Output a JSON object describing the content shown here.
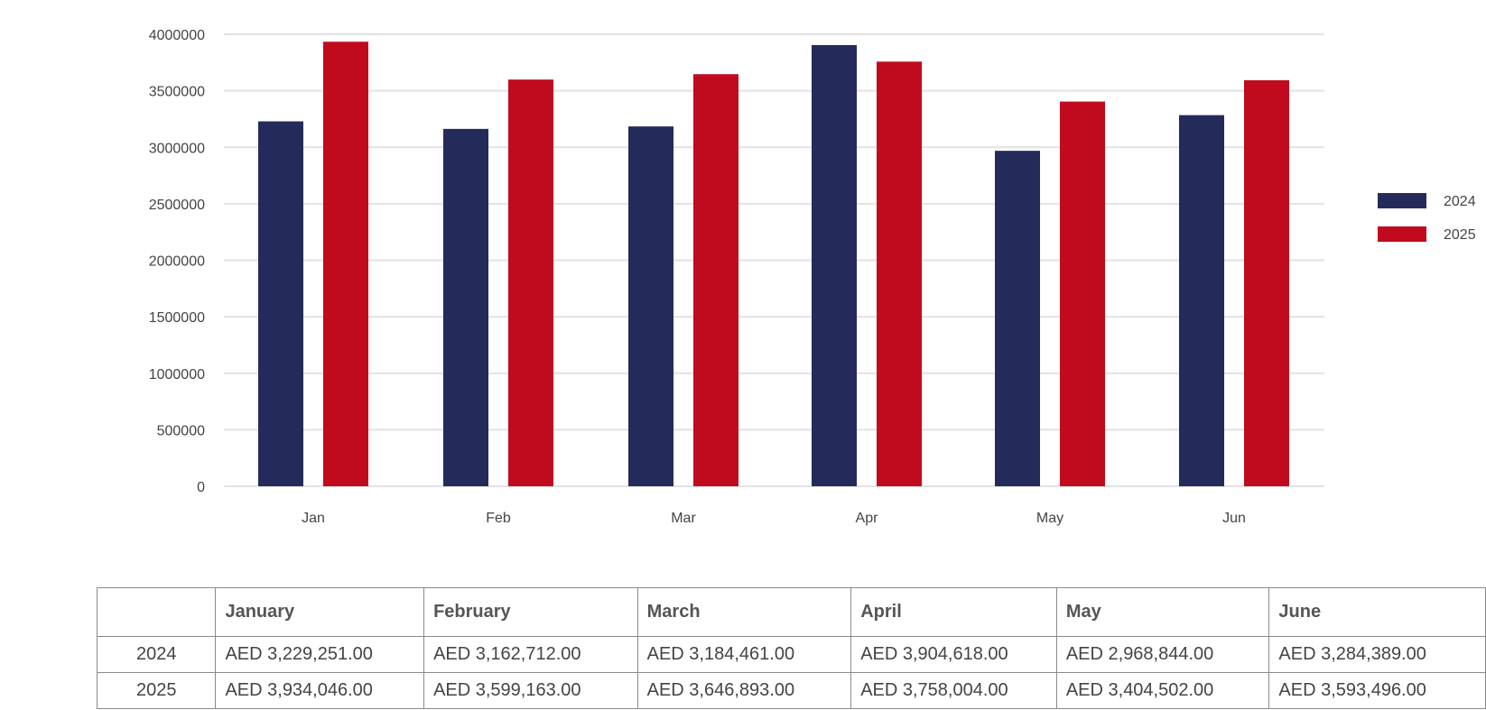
{
  "chart_data": {
    "type": "bar",
    "categories": [
      "Jan",
      "Feb",
      "Mar",
      "Apr",
      "May",
      "Jun"
    ],
    "series": [
      {
        "name": "2024",
        "color": "#242B5A",
        "values": [
          3229251,
          3162712,
          3184461,
          3904618,
          2968844,
          3284389
        ]
      },
      {
        "name": "2025",
        "color": "#C10A1E",
        "values": [
          3934046,
          3599163,
          3646893,
          3758004,
          3404502,
          3593496
        ]
      }
    ],
    "yticks": [
      0,
      500000,
      1000000,
      1500000,
      2000000,
      2500000,
      3000000,
      3500000,
      4000000
    ],
    "ylim": [
      0,
      4000000
    ],
    "grid": true,
    "legend_position": "right"
  },
  "table": {
    "headers": [
      "",
      "January",
      "February",
      "March",
      "April",
      "May",
      "June"
    ],
    "rows": [
      {
        "year": "2024",
        "values": [
          "AED 3,229,251.00",
          "AED 3,162,712.00",
          "AED 3,184,461.00",
          "AED 3,904,618.00",
          "AED 2,968,844.00",
          "AED 3,284,389.00"
        ]
      },
      {
        "year": "2025",
        "values": [
          "AED 3,934,046.00",
          "AED 3,599,163.00",
          "AED 3,646,893.00",
          "AED 3,758,004.00",
          "AED 3,404,502.00",
          "AED 3,593,496.00"
        ]
      }
    ]
  }
}
